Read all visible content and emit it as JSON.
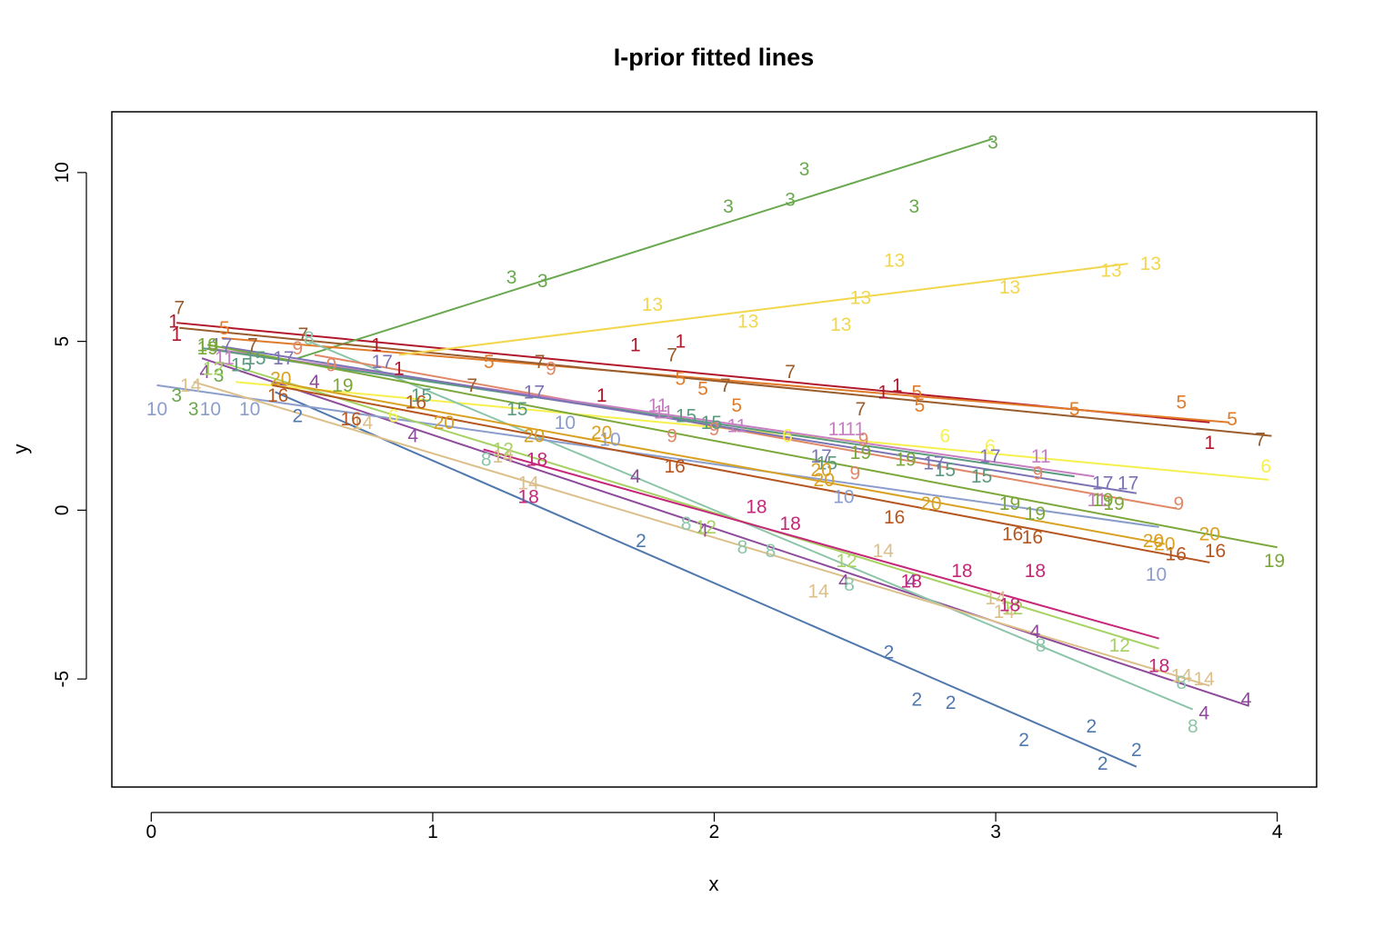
{
  "chart_data": {
    "type": "line",
    "title": "I-prior fitted lines",
    "xlabel": "x",
    "ylabel": "y",
    "xlim": [
      -0.14,
      4.14
    ],
    "ylim": [
      -8.2,
      11.8
    ],
    "xticks": [
      "0",
      "1",
      "2",
      "3",
      "4"
    ],
    "yticks": [
      "-5",
      "0",
      "5",
      "10"
    ],
    "grid": false,
    "legend": "none",
    "series": [
      {
        "name": "1",
        "color": "#b2182b",
        "line": [
          [
            0.09,
            5.55
          ],
          [
            3.76,
            2.6
          ]
        ],
        "points": [
          [
            0.08,
            5.6
          ],
          [
            0.09,
            5.2
          ],
          [
            0.8,
            4.9
          ],
          [
            0.88,
            4.2
          ],
          [
            1.6,
            3.4
          ],
          [
            1.72,
            4.9
          ],
          [
            1.88,
            5.0
          ],
          [
            2.6,
            3.5
          ],
          [
            2.65,
            3.7
          ],
          [
            3.76,
            2.0
          ]
        ]
      },
      {
        "name": "2",
        "color": "#4f78ad",
        "line": [
          [
            0.44,
            3.5
          ],
          [
            3.5,
            -7.6
          ]
        ],
        "points": [
          [
            0.52,
            2.8
          ],
          [
            1.74,
            -0.9
          ],
          [
            2.62,
            -4.2
          ],
          [
            2.72,
            -5.6
          ],
          [
            2.84,
            -5.7
          ],
          [
            3.1,
            -6.8
          ],
          [
            3.34,
            -6.4
          ],
          [
            3.38,
            -7.5
          ],
          [
            3.5,
            -7.1
          ]
        ]
      },
      {
        "name": "3",
        "color": "#6aa84f",
        "line": [
          [
            0.52,
            4.5
          ],
          [
            2.99,
            11.0
          ]
        ],
        "points": [
          [
            0.09,
            3.4
          ],
          [
            0.15,
            3.0
          ],
          [
            0.24,
            4.0
          ],
          [
            1.28,
            6.9
          ],
          [
            1.39,
            6.8
          ],
          [
            2.05,
            9.0
          ],
          [
            2.27,
            9.2
          ],
          [
            2.32,
            10.1
          ],
          [
            2.71,
            9.0
          ],
          [
            2.99,
            10.9
          ]
        ]
      },
      {
        "name": "4",
        "color": "#8e4a9b",
        "line": [
          [
            0.18,
            4.5
          ],
          [
            3.9,
            -5.8
          ]
        ],
        "points": [
          [
            0.19,
            4.1
          ],
          [
            0.58,
            3.8
          ],
          [
            0.93,
            2.2
          ],
          [
            1.72,
            1.0
          ],
          [
            1.96,
            -0.6
          ],
          [
            2.46,
            -2.1
          ],
          [
            2.7,
            -2.1
          ],
          [
            3.14,
            -3.6
          ],
          [
            3.74,
            -6.0
          ],
          [
            3.89,
            -5.6
          ]
        ]
      },
      {
        "name": "5",
        "color": "#e07b2a",
        "line": [
          [
            0.25,
            5.1
          ],
          [
            3.83,
            2.6
          ]
        ],
        "points": [
          [
            0.26,
            5.4
          ],
          [
            1.2,
            4.4
          ],
          [
            1.88,
            3.9
          ],
          [
            1.96,
            3.6
          ],
          [
            2.08,
            3.1
          ],
          [
            2.72,
            3.5
          ],
          [
            2.73,
            3.1
          ],
          [
            3.28,
            3.0
          ],
          [
            3.66,
            3.2
          ],
          [
            3.84,
            2.7
          ]
        ]
      },
      {
        "name": "6",
        "color": "#f6f04d",
        "line": [
          [
            0.3,
            3.8
          ],
          [
            3.97,
            0.9
          ]
        ],
        "points": [
          [
            0.86,
            2.8
          ],
          [
            2.26,
            2.2
          ],
          [
            2.82,
            2.2
          ],
          [
            2.98,
            1.9
          ],
          [
            3.96,
            1.3
          ]
        ]
      },
      {
        "name": "7",
        "color": "#985c2d",
        "line": [
          [
            0.1,
            5.4
          ],
          [
            3.98,
            2.2
          ]
        ],
        "points": [
          [
            0.1,
            6.0
          ],
          [
            0.36,
            4.9
          ],
          [
            0.54,
            5.2
          ],
          [
            1.14,
            3.7
          ],
          [
            1.38,
            4.4
          ],
          [
            1.85,
            4.6
          ],
          [
            2.04,
            3.7
          ],
          [
            2.27,
            4.1
          ],
          [
            2.52,
            3.0
          ],
          [
            3.94,
            2.1
          ]
        ]
      },
      {
        "name": "8",
        "color": "#8dc5a9",
        "line": [
          [
            0.56,
            5.0
          ],
          [
            3.7,
            -5.9
          ]
        ],
        "points": [
          [
            0.56,
            5.1
          ],
          [
            1.19,
            1.5
          ],
          [
            1.9,
            -0.4
          ],
          [
            2.1,
            -1.1
          ],
          [
            2.2,
            -1.2
          ],
          [
            2.48,
            -2.2
          ],
          [
            3.16,
            -4.0
          ],
          [
            3.66,
            -5.1
          ],
          [
            3.7,
            -6.4
          ]
        ]
      },
      {
        "name": "9",
        "color": "#e08868",
        "line": [
          [
            0.58,
            4.6
          ],
          [
            3.64,
            0.05
          ]
        ],
        "points": [
          [
            0.52,
            4.8
          ],
          [
            0.64,
            4.3
          ],
          [
            1.42,
            4.2
          ],
          [
            1.85,
            2.2
          ],
          [
            2.0,
            2.4
          ],
          [
            2.53,
            2.1
          ],
          [
            2.5,
            1.1
          ],
          [
            3.15,
            1.1
          ],
          [
            3.65,
            0.2
          ]
        ]
      },
      {
        "name": "10",
        "color": "#8b9dcb",
        "line": [
          [
            0.02,
            3.7
          ],
          [
            3.58,
            -0.5
          ]
        ],
        "points": [
          [
            0.02,
            3.0
          ],
          [
            0.21,
            3.0
          ],
          [
            0.35,
            3.0
          ],
          [
            1.47,
            2.6
          ],
          [
            1.63,
            2.1
          ],
          [
            2.46,
            0.4
          ],
          [
            3.57,
            -1.9
          ]
        ]
      },
      {
        "name": "11",
        "color": "#c87ec2",
        "line": [
          [
            0.2,
            4.8
          ],
          [
            3.35,
            1.0
          ]
        ],
        "points": [
          [
            0.26,
            4.5
          ],
          [
            1.8,
            3.1
          ],
          [
            1.82,
            2.9
          ],
          [
            2.08,
            2.5
          ],
          [
            2.5,
            2.4
          ],
          [
            2.44,
            2.4
          ],
          [
            3.16,
            1.6
          ],
          [
            3.36,
            0.3
          ]
        ]
      },
      {
        "name": "12",
        "color": "#a6d163",
        "line": [
          [
            0.24,
            4.4
          ],
          [
            3.58,
            -4.1
          ]
        ],
        "points": [
          [
            0.22,
            4.2
          ],
          [
            1.25,
            1.8
          ],
          [
            1.97,
            -0.5
          ],
          [
            2.47,
            -1.5
          ],
          [
            3.06,
            -2.9
          ],
          [
            3.44,
            -4.0
          ]
        ]
      },
      {
        "name": "13",
        "color": "#f1d64e",
        "line": [
          [
            0.88,
            4.6
          ],
          [
            3.47,
            7.3
          ]
        ],
        "points": [
          [
            1.78,
            6.1
          ],
          [
            2.12,
            5.6
          ],
          [
            2.52,
            6.3
          ],
          [
            2.45,
            5.5
          ],
          [
            2.64,
            7.4
          ],
          [
            3.05,
            6.6
          ],
          [
            3.41,
            7.1
          ],
          [
            3.55,
            7.3
          ]
        ]
      },
      {
        "name": "14",
        "color": "#dcc08c",
        "line": [
          [
            0.15,
            3.8
          ],
          [
            3.76,
            -5.2
          ]
        ],
        "points": [
          [
            0.14,
            3.7
          ],
          [
            0.75,
            2.6
          ],
          [
            1.25,
            1.6
          ],
          [
            1.34,
            0.8
          ],
          [
            2.37,
            -2.4
          ],
          [
            2.6,
            -1.2
          ],
          [
            3.03,
            -3.0
          ],
          [
            3.0,
            -2.6
          ],
          [
            3.66,
            -4.9
          ],
          [
            3.74,
            -5.0
          ]
        ]
      },
      {
        "name": "15",
        "color": "#5a9b7f",
        "line": [
          [
            0.18,
            4.8
          ],
          [
            3.28,
            1.0
          ]
        ],
        "points": [
          [
            0.32,
            4.3
          ],
          [
            0.37,
            4.5
          ],
          [
            0.96,
            3.4
          ],
          [
            1.3,
            3.0
          ],
          [
            1.9,
            2.8
          ],
          [
            1.99,
            2.6
          ],
          [
            2.4,
            1.4
          ],
          [
            2.82,
            1.2
          ],
          [
            2.95,
            1.0
          ]
        ]
      },
      {
        "name": "16",
        "color": "#b5551f",
        "line": [
          [
            0.43,
            3.7
          ],
          [
            3.76,
            -1.55
          ]
        ],
        "points": [
          [
            0.45,
            3.4
          ],
          [
            0.71,
            2.7
          ],
          [
            0.94,
            3.2
          ],
          [
            1.86,
            1.3
          ],
          [
            2.64,
            -0.2
          ],
          [
            3.06,
            -0.7
          ],
          [
            3.13,
            -0.8
          ],
          [
            3.64,
            -1.3
          ],
          [
            3.78,
            -1.2
          ]
        ]
      },
      {
        "name": "17",
        "color": "#7b73b3",
        "line": [
          [
            0.25,
            4.85
          ],
          [
            3.5,
            0.5
          ]
        ],
        "points": [
          [
            0.25,
            4.9
          ],
          [
            0.47,
            4.5
          ],
          [
            0.82,
            4.4
          ],
          [
            1.36,
            3.5
          ],
          [
            2.38,
            1.6
          ],
          [
            2.78,
            1.4
          ],
          [
            2.98,
            1.6
          ],
          [
            3.38,
            0.8
          ],
          [
            3.47,
            0.8
          ]
        ]
      },
      {
        "name": "18",
        "color": "#c52779",
        "line": [
          [
            1.18,
            1.8
          ],
          [
            3.58,
            -3.8
          ]
        ],
        "points": [
          [
            1.37,
            1.5
          ],
          [
            1.34,
            0.4
          ],
          [
            2.15,
            0.1
          ],
          [
            2.27,
            -0.4
          ],
          [
            2.7,
            -2.1
          ],
          [
            2.88,
            -1.8
          ],
          [
            3.05,
            -2.8
          ],
          [
            3.14,
            -1.8
          ],
          [
            3.58,
            -4.6
          ]
        ]
      },
      {
        "name": "19",
        "color": "#7ba73b",
        "line": [
          [
            0.2,
            4.9
          ],
          [
            4.0,
            -1.1
          ]
        ],
        "points": [
          [
            0.2,
            4.9
          ],
          [
            0.2,
            4.8
          ],
          [
            0.68,
            3.7
          ],
          [
            2.52,
            1.7
          ],
          [
            2.68,
            1.5
          ],
          [
            3.05,
            0.2
          ],
          [
            3.14,
            -0.1
          ],
          [
            3.38,
            0.3
          ],
          [
            3.42,
            0.2
          ],
          [
            3.99,
            -1.5
          ]
        ]
      },
      {
        "name": "20",
        "color": "#d9a122",
        "line": [
          [
            0.44,
            3.8
          ],
          [
            3.6,
            -1.0
          ]
        ],
        "points": [
          [
            0.46,
            3.9
          ],
          [
            1.04,
            2.6
          ],
          [
            1.36,
            2.2
          ],
          [
            1.6,
            2.3
          ],
          [
            2.39,
            0.9
          ],
          [
            2.38,
            1.2
          ],
          [
            2.77,
            0.2
          ],
          [
            3.56,
            -0.9
          ],
          [
            3.6,
            -1.0
          ],
          [
            3.76,
            -0.7
          ]
        ]
      }
    ]
  }
}
